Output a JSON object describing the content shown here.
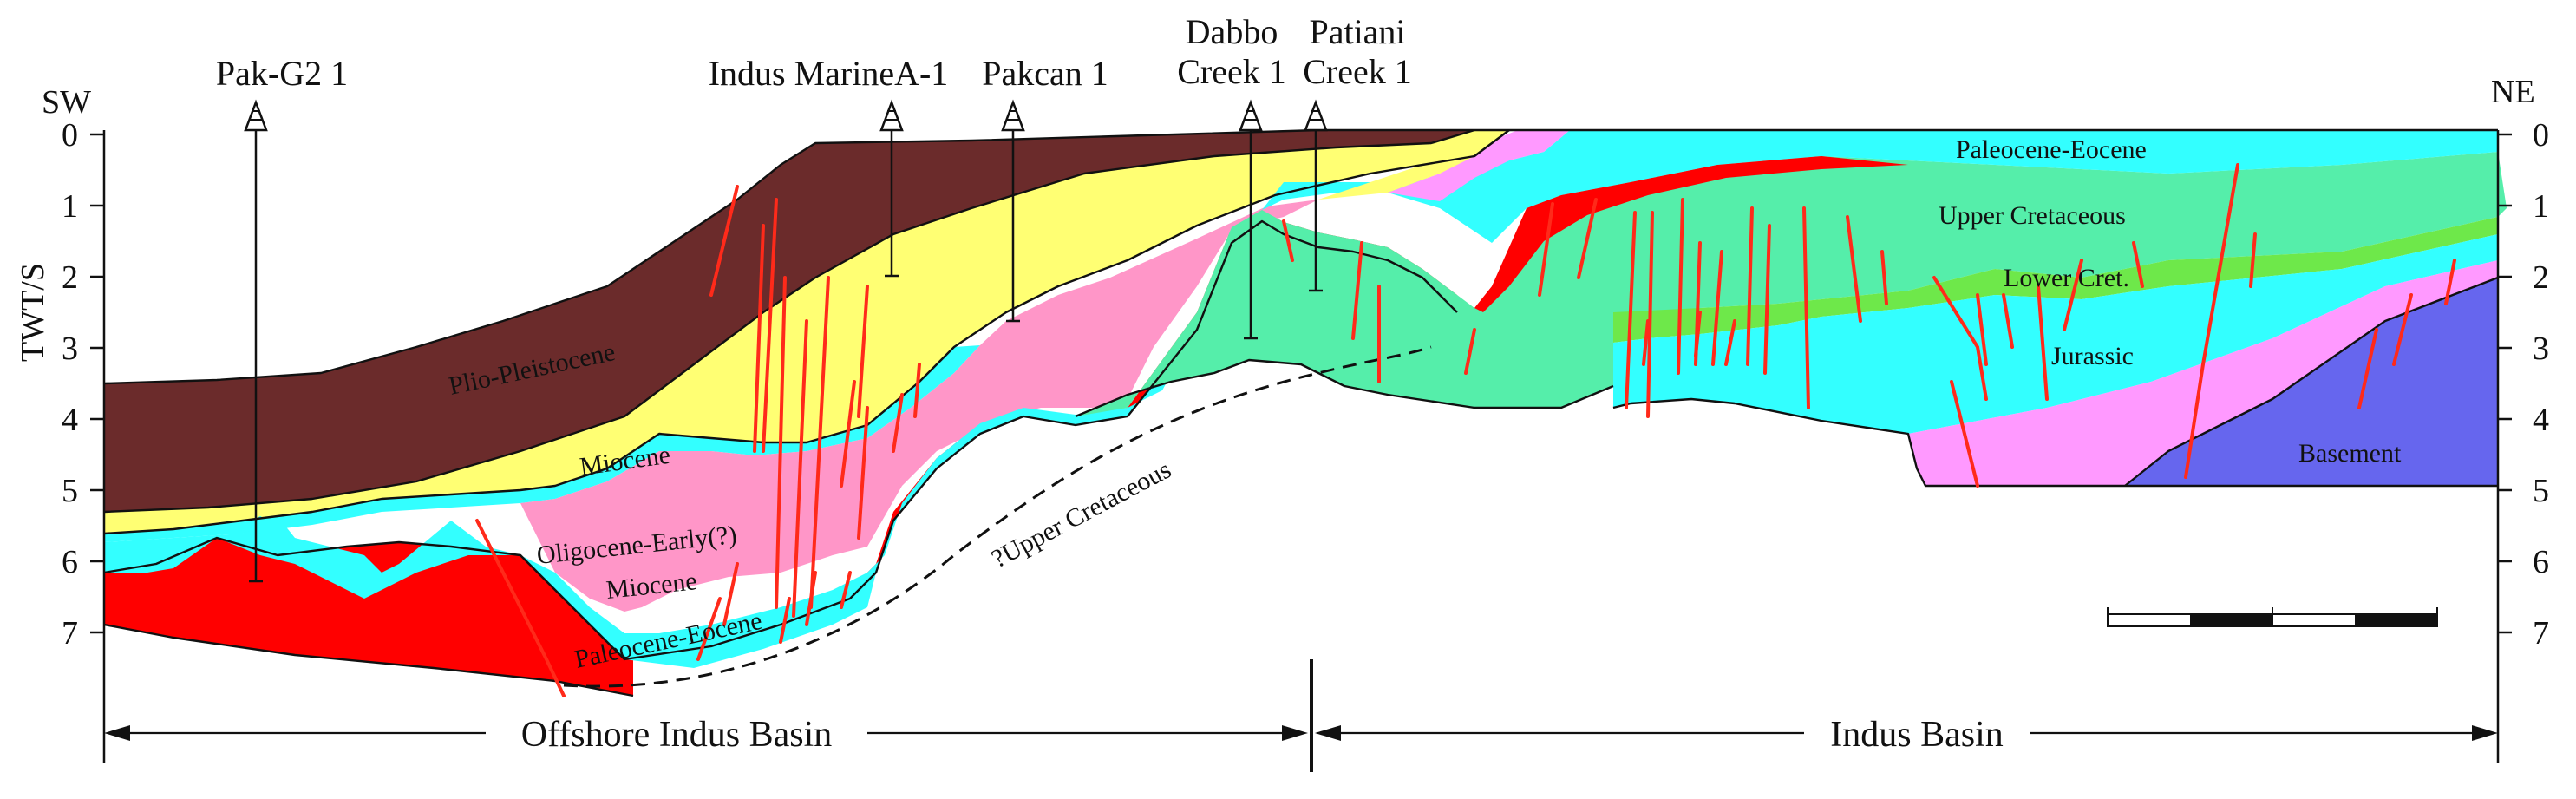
{
  "labels": {
    "sw": "SW",
    "ne": "NE",
    "y_axis": "TWT/S",
    "basin_offshore": "Offshore Indus Basin",
    "basin_onshore": "Indus Basin"
  },
  "wells": [
    {
      "name": "Pak-G2 1"
    },
    {
      "name": "Indus MarineA-1"
    },
    {
      "name": "Pakcan 1"
    },
    {
      "name": "Dabbo Creek 1"
    },
    {
      "name": "Patiani Creek 1"
    }
  ],
  "twt_ticks": [
    "0",
    "1",
    "2",
    "3",
    "4",
    "5",
    "6",
    "7"
  ],
  "units": {
    "plio_pleistocene": "Plio-Pleistocene",
    "miocene": "Miocene",
    "oligocene_line1": "Oligocene-Early(?)",
    "oligocene_line2": "Miocene",
    "paleocene_eocene_west": "Paleocene-Eocene",
    "upper_cret_query": "?Upper Cretaceous",
    "paleocene_eocene_east": "Paleocene-Eocene",
    "upper_cretaceous": "Upper Cretaceous",
    "lower_cret": "Lower Cret.",
    "jurassic": "Jurassic",
    "basement": "Basement"
  },
  "colors": {
    "plio_pleistocene": "#6b2b2b",
    "miocene": "#ffff73",
    "oligocene": "#ff96c8",
    "paleocene_eocene": "#33ffff",
    "red_unit": "#ff0000",
    "upper_cretaceous": "#55eeaa",
    "lower_cret": "#6ee84a",
    "jurassic": "#33ffff",
    "triassic_pink": "#ff99ff",
    "basement": "#6666ee",
    "fault": "#ff2a1a"
  }
}
